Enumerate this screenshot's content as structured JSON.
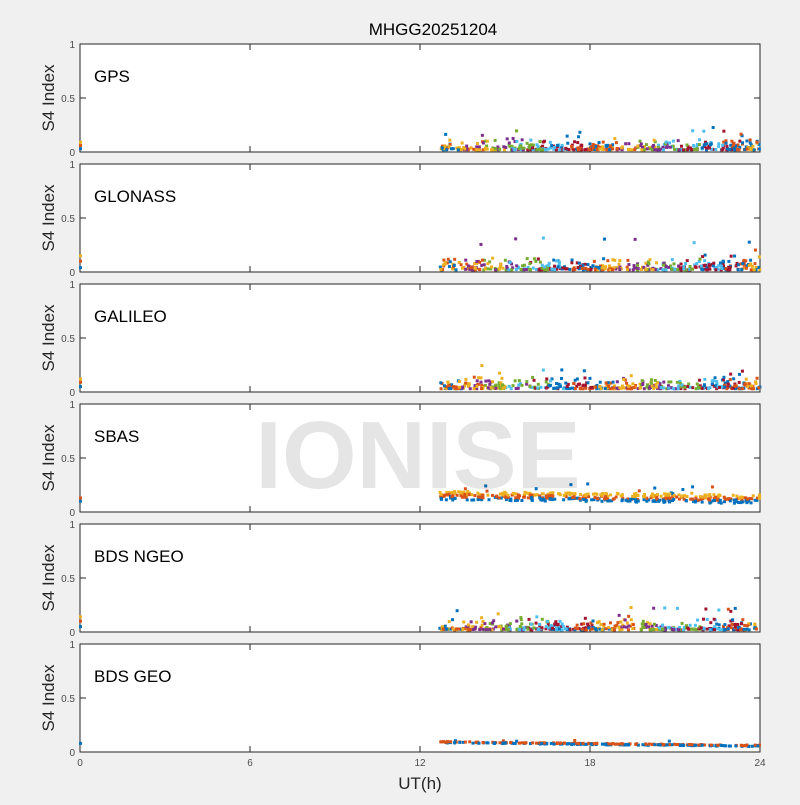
{
  "chart_data": {
    "type": "scatter",
    "title": "MHGG20251204",
    "xlabel": "UT(h)",
    "ylabel": "S4 Index",
    "xlim": [
      0,
      24
    ],
    "ylim": [
      0,
      1
    ],
    "xticks": [
      "0",
      "6",
      "12",
      "18",
      "24"
    ],
    "yticks": [
      "0",
      "0.5",
      "1"
    ],
    "watermark": "IONISE",
    "grid": false,
    "colors": [
      "#0072BD",
      "#D95319",
      "#EDB120",
      "#7E2F8E",
      "#77AC30",
      "#4DBEEE",
      "#A2142F"
    ],
    "panels": [
      {
        "name": "GPS",
        "x_range": [
          12.7,
          24
        ],
        "s4_base": [
          0.02,
          0.12
        ],
        "s4_max": 0.24,
        "x0_values": [
          0.03,
          0.06,
          0.09
        ],
        "series_count": 7
      },
      {
        "name": "GLONASS",
        "x_range": [
          12.7,
          24
        ],
        "s4_base": [
          0.02,
          0.13
        ],
        "s4_max": 0.33,
        "x0_values": [
          0.04,
          0.1,
          0.15
        ],
        "series_count": 7
      },
      {
        "name": "GALILEO",
        "x_range": [
          12.7,
          24
        ],
        "s4_base": [
          0.03,
          0.14
        ],
        "s4_max": 0.25,
        "x0_values": [
          0.05,
          0.09,
          0.12
        ],
        "series_count": 7
      },
      {
        "name": "SBAS",
        "x_range": [
          12.7,
          24
        ],
        "s4_base": [
          0.09,
          0.17
        ],
        "s4_max": 0.27,
        "x0_values": [
          0.1,
          0.13
        ],
        "series_count": 3
      },
      {
        "name": "BDS NGEO",
        "x_range": [
          12.7,
          24
        ],
        "s4_base": [
          0.02,
          0.12
        ],
        "s4_max": 0.23,
        "x0_values": [
          0.05,
          0.1,
          0.14
        ],
        "series_count": 7
      },
      {
        "name": "BDS GEO",
        "x_range": [
          12.7,
          24
        ],
        "s4_base": [
          0.08,
          0.1
        ],
        "s4_max": 0.11,
        "x0_values": [
          0.08
        ],
        "series_count": 2
      }
    ]
  }
}
